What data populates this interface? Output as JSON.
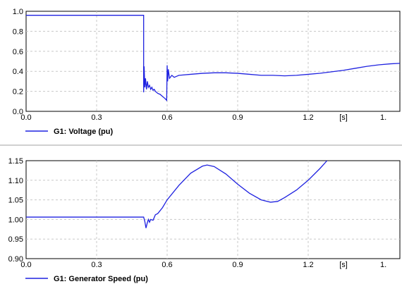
{
  "colors": {
    "series": "#1f22e0",
    "grid": "#c8c8c8",
    "axis": "#000000",
    "separator": "#a0a0a0"
  },
  "chart_data": [
    {
      "type": "line",
      "title": "",
      "xlabel": "",
      "ylabel": "",
      "xlim": [
        0.0,
        1.59
      ],
      "ylim": [
        0.0,
        1.0
      ],
      "x_ticks": [
        "0.0",
        "0.3",
        "0.6",
        "0.9",
        "1.2",
        "[s]",
        "1."
      ],
      "y_ticks": [
        "1.0",
        "0.8",
        "0.6",
        "0.4",
        "0.2",
        "0.0"
      ],
      "grid": true,
      "legend_position": "bottom-left",
      "series": [
        {
          "name": "G1: Voltage (pu)",
          "x": [
            0.0,
            0.5,
            0.5,
            0.502,
            0.505,
            0.508,
            0.512,
            0.516,
            0.52,
            0.525,
            0.53,
            0.535,
            0.54,
            0.545,
            0.55,
            0.56,
            0.57,
            0.58,
            0.59,
            0.598,
            0.6,
            0.602,
            0.605,
            0.61,
            0.62,
            0.63,
            0.64,
            0.65,
            0.7,
            0.75,
            0.8,
            0.85,
            0.9,
            0.95,
            1.0,
            1.05,
            1.1,
            1.15,
            1.2,
            1.25,
            1.3,
            1.35,
            1.4,
            1.45,
            1.5,
            1.55,
            1.59
          ],
          "y": [
            0.96,
            0.96,
            0.19,
            0.45,
            0.24,
            0.33,
            0.22,
            0.3,
            0.24,
            0.26,
            0.22,
            0.24,
            0.21,
            0.22,
            0.2,
            0.18,
            0.17,
            0.15,
            0.13,
            0.11,
            0.46,
            0.3,
            0.42,
            0.33,
            0.36,
            0.34,
            0.35,
            0.36,
            0.37,
            0.38,
            0.385,
            0.385,
            0.38,
            0.37,
            0.36,
            0.36,
            0.355,
            0.36,
            0.37,
            0.38,
            0.395,
            0.41,
            0.43,
            0.45,
            0.465,
            0.475,
            0.48
          ]
        }
      ]
    },
    {
      "type": "line",
      "title": "",
      "xlabel": "",
      "ylabel": "",
      "xlim": [
        0.0,
        1.59
      ],
      "ylim": [
        0.9,
        1.15
      ],
      "x_ticks": [
        "0.0",
        "0.3",
        "0.6",
        "0.9",
        "1.2",
        "[s]",
        "1."
      ],
      "y_ticks": [
        "1.15",
        "1.10",
        "1.05",
        "1.00",
        "0.95",
        "0.90"
      ],
      "grid": true,
      "legend_position": "bottom-left",
      "series": [
        {
          "name": "G1: Generator Speed (pu)",
          "x": [
            0.0,
            0.5,
            0.505,
            0.51,
            0.515,
            0.52,
            0.525,
            0.53,
            0.54,
            0.55,
            0.56,
            0.58,
            0.6,
            0.65,
            0.7,
            0.75,
            0.77,
            0.8,
            0.85,
            0.9,
            0.95,
            1.0,
            1.04,
            1.07,
            1.1,
            1.15,
            1.2,
            1.25,
            1.28
          ],
          "y": [
            1.006,
            1.006,
            0.995,
            0.978,
            0.99,
            1.0,
            0.993,
            1.0,
            0.998,
            1.012,
            1.015,
            1.03,
            1.05,
            1.087,
            1.118,
            1.136,
            1.139,
            1.135,
            1.116,
            1.09,
            1.067,
            1.05,
            1.044,
            1.046,
            1.056,
            1.075,
            1.1,
            1.13,
            1.15
          ]
        }
      ]
    }
  ]
}
